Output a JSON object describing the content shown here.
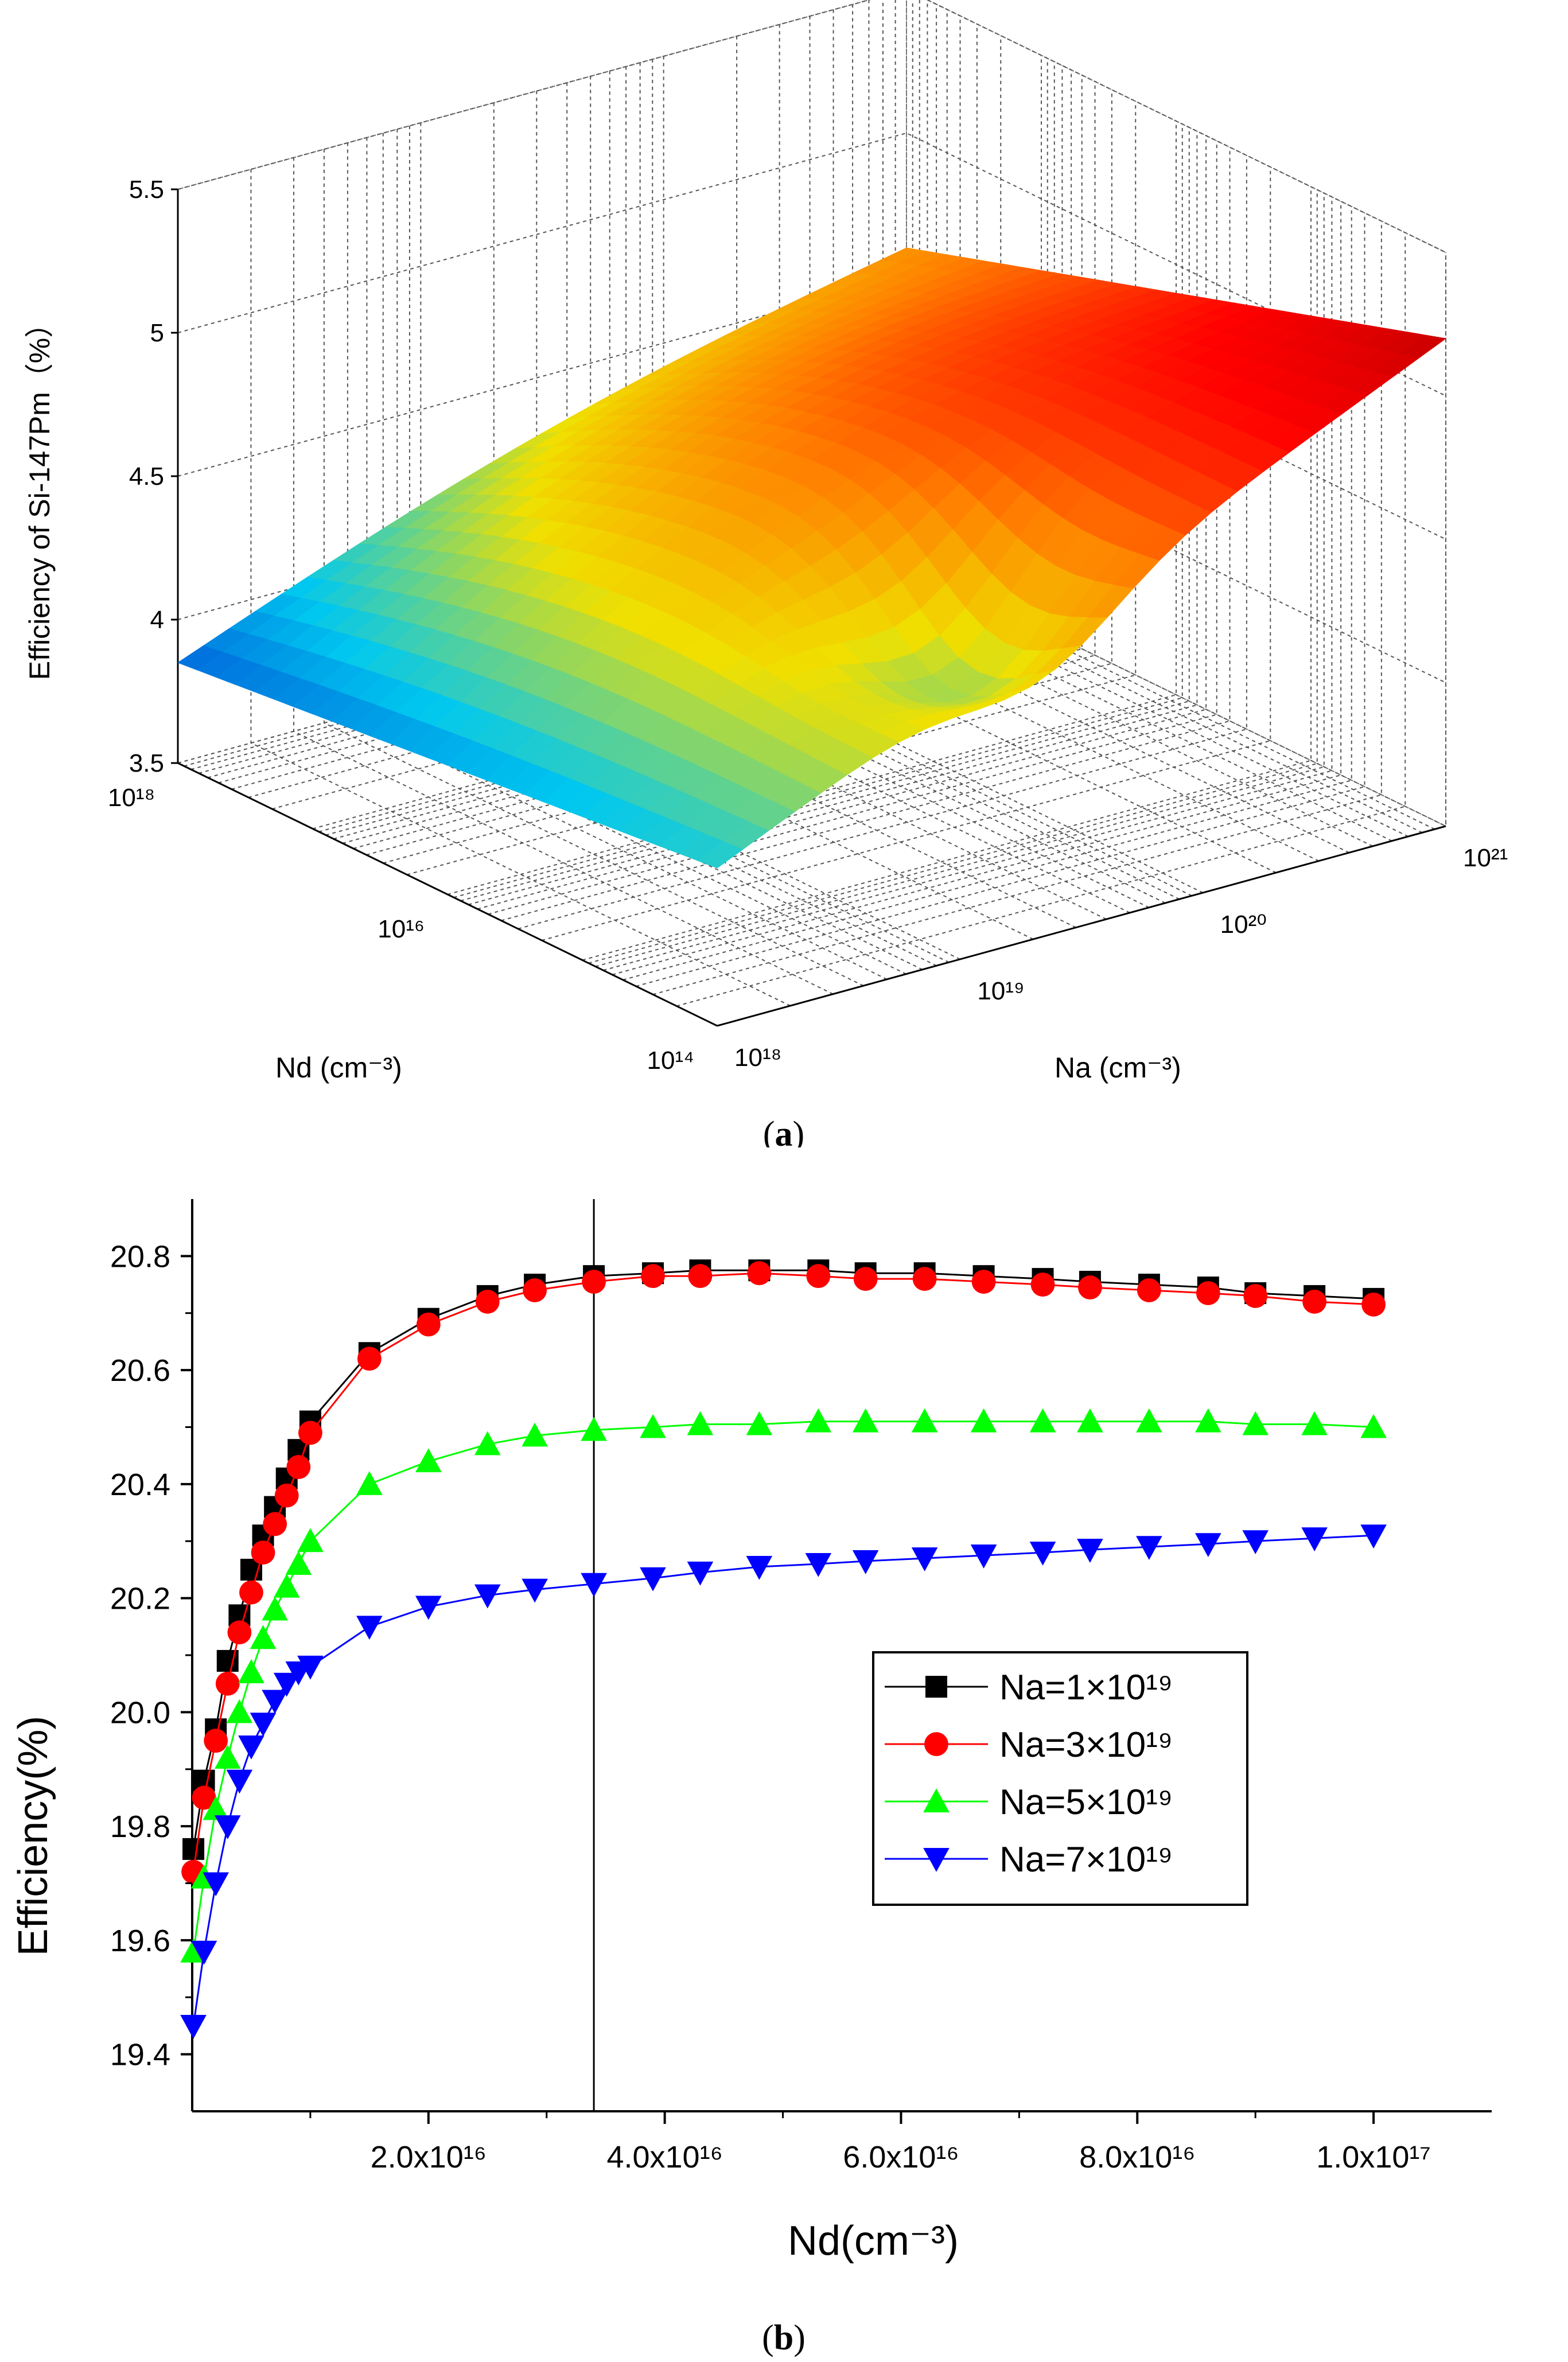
{
  "panels": [
    {
      "label_open": "(",
      "label_letter": "a",
      "label_close": ")"
    },
    {
      "label_open": "(",
      "label_letter": "b",
      "label_close": ")"
    }
  ],
  "chart_data": [
    {
      "type": "surface",
      "zlabel": "Efficiency of Si-147Pm（%）",
      "xlabel": "Na (cm⁻³)",
      "ylabel": "Nd (cm⁻³)",
      "z_ticks": [
        "3.5",
        "4",
        "4.5",
        "5",
        "5.5"
      ],
      "zlim": [
        3.5,
        5.5
      ],
      "na_ticks": [
        "10¹⁸",
        "10¹⁹",
        "10²⁰",
        "10²¹"
      ],
      "nd_ticks": [
        "10¹⁴",
        "10¹⁶",
        "10¹⁸"
      ],
      "na_log_range": [
        18,
        21
      ],
      "nd_log_range": [
        14,
        18
      ],
      "surface_corners": {
        "na_1e18_nd_1e18": 3.85,
        "na_1e18_nd_1e14": 4.05,
        "na_1e21_nd_1e18": 4.6,
        "na_1e21_nd_1e14": 5.2
      },
      "colormap": [
        "#0010c8",
        "#00c8f0",
        "#f0e000",
        "#ff8000",
        "#ff0000",
        "#b00000"
      ]
    },
    {
      "type": "line",
      "xlabel": "Nd(cm⁻³)",
      "ylabel": "Efficiency(%)",
      "xlim": [
        0,
        1.1e+17
      ],
      "ylim": [
        19.3,
        20.9
      ],
      "x_tick_labels": [
        "2.0x10¹⁶",
        "4.0x10¹⁶",
        "6.0x10¹⁶",
        "8.0x10¹⁶",
        "1.0x10¹⁷"
      ],
      "x_tick_values": [
        2e+16,
        4e+16,
        6e+16,
        8e+16,
        1e+17
      ],
      "y_ticks": [
        "19.4",
        "19.6",
        "19.8",
        "20.0",
        "20.2",
        "20.4",
        "20.6",
        "20.8"
      ],
      "vertical_line_x": 3.4e+16,
      "legend_position": "center-right",
      "series": [
        {
          "name": "Na=1×10¹⁹",
          "marker": "square",
          "color": "#000000",
          "x": [
            100000000000000.0,
            1000000000000000.0,
            2000000000000000.0,
            3000000000000000.0,
            4000000000000000.0,
            5000000000000000.0,
            6000000000000000.0,
            7000000000000000.0,
            8000000000000000.0,
            9000000000000000.0,
            1e+16,
            1.5e+16,
            2e+16,
            2.5e+16,
            2.9e+16,
            3.4e+16,
            3.9e+16,
            4.3e+16,
            4.8e+16,
            5.3e+16,
            5.7e+16,
            6.2e+16,
            6.7e+16,
            7.2e+16,
            7.6e+16,
            8.1e+16,
            8.6e+16,
            9e+16,
            9.5e+16,
            1e+17
          ],
          "y": [
            19.76,
            19.88,
            19.97,
            20.09,
            20.17,
            20.25,
            20.31,
            20.36,
            20.41,
            20.46,
            20.51,
            20.63,
            20.69,
            20.73,
            20.75,
            20.765,
            20.77,
            20.775,
            20.775,
            20.775,
            20.77,
            20.77,
            20.765,
            20.76,
            20.755,
            20.75,
            20.745,
            20.735,
            20.73,
            20.725
          ]
        },
        {
          "name": "Na=3×10¹⁹",
          "marker": "circle",
          "color": "#ff0000",
          "x": [
            100000000000000.0,
            1000000000000000.0,
            2000000000000000.0,
            3000000000000000.0,
            4000000000000000.0,
            5000000000000000.0,
            6000000000000000.0,
            7000000000000000.0,
            8000000000000000.0,
            9000000000000000.0,
            1e+16,
            1.5e+16,
            2e+16,
            2.5e+16,
            2.9e+16,
            3.4e+16,
            3.9e+16,
            4.3e+16,
            4.8e+16,
            5.3e+16,
            5.7e+16,
            6.2e+16,
            6.7e+16,
            7.2e+16,
            7.6e+16,
            8.1e+16,
            8.6e+16,
            9e+16,
            9.5e+16,
            1e+17
          ],
          "y": [
            19.72,
            19.85,
            19.95,
            20.05,
            20.14,
            20.21,
            20.28,
            20.33,
            20.38,
            20.43,
            20.49,
            20.62,
            20.68,
            20.72,
            20.74,
            20.755,
            20.765,
            20.765,
            20.77,
            20.765,
            20.76,
            20.76,
            20.755,
            20.75,
            20.745,
            20.74,
            20.735,
            20.73,
            20.72,
            20.715
          ]
        },
        {
          "name": "Na=5×10¹⁹",
          "marker": "triangle-up",
          "color": "#00ff00",
          "x": [
            100000000000000.0,
            1000000000000000.0,
            2000000000000000.0,
            3000000000000000.0,
            4000000000000000.0,
            5000000000000000.0,
            6000000000000000.0,
            7000000000000000.0,
            8000000000000000.0,
            9000000000000000.0,
            1e+16,
            1.5e+16,
            2e+16,
            2.5e+16,
            2.9e+16,
            3.4e+16,
            3.9e+16,
            4.3e+16,
            4.8e+16,
            5.3e+16,
            5.7e+16,
            6.2e+16,
            6.7e+16,
            7.2e+16,
            7.6e+16,
            8.1e+16,
            8.6e+16,
            9e+16,
            9.5e+16,
            1e+17
          ],
          "y": [
            19.58,
            19.71,
            19.83,
            19.92,
            20.0,
            20.07,
            20.13,
            20.18,
            20.22,
            20.26,
            20.3,
            20.4,
            20.44,
            20.47,
            20.485,
            20.495,
            20.5,
            20.505,
            20.505,
            20.51,
            20.51,
            20.51,
            20.51,
            20.51,
            20.51,
            20.51,
            20.51,
            20.505,
            20.505,
            20.5
          ]
        },
        {
          "name": "Na=7×10¹⁹",
          "marker": "triangle-down",
          "color": "#0000ff",
          "x": [
            100000000000000.0,
            1000000000000000.0,
            2000000000000000.0,
            3000000000000000.0,
            4000000000000000.0,
            5000000000000000.0,
            6000000000000000.0,
            7000000000000000.0,
            8000000000000000.0,
            9000000000000000.0,
            1e+16,
            1.5e+16,
            2e+16,
            2.5e+16,
            2.9e+16,
            3.4e+16,
            3.9e+16,
            4.3e+16,
            4.8e+16,
            5.3e+16,
            5.7e+16,
            6.2e+16,
            6.7e+16,
            7.2e+16,
            7.6e+16,
            8.1e+16,
            8.6e+16,
            9e+16,
            9.5e+16,
            1e+17
          ],
          "y": [
            19.45,
            19.58,
            19.7,
            19.8,
            19.88,
            19.94,
            19.98,
            20.02,
            20.05,
            20.07,
            20.08,
            20.15,
            20.185,
            20.205,
            20.215,
            20.225,
            20.235,
            20.245,
            20.255,
            20.26,
            20.265,
            20.27,
            20.275,
            20.28,
            20.285,
            20.29,
            20.295,
            20.3,
            20.305,
            20.31
          ]
        }
      ]
    }
  ]
}
